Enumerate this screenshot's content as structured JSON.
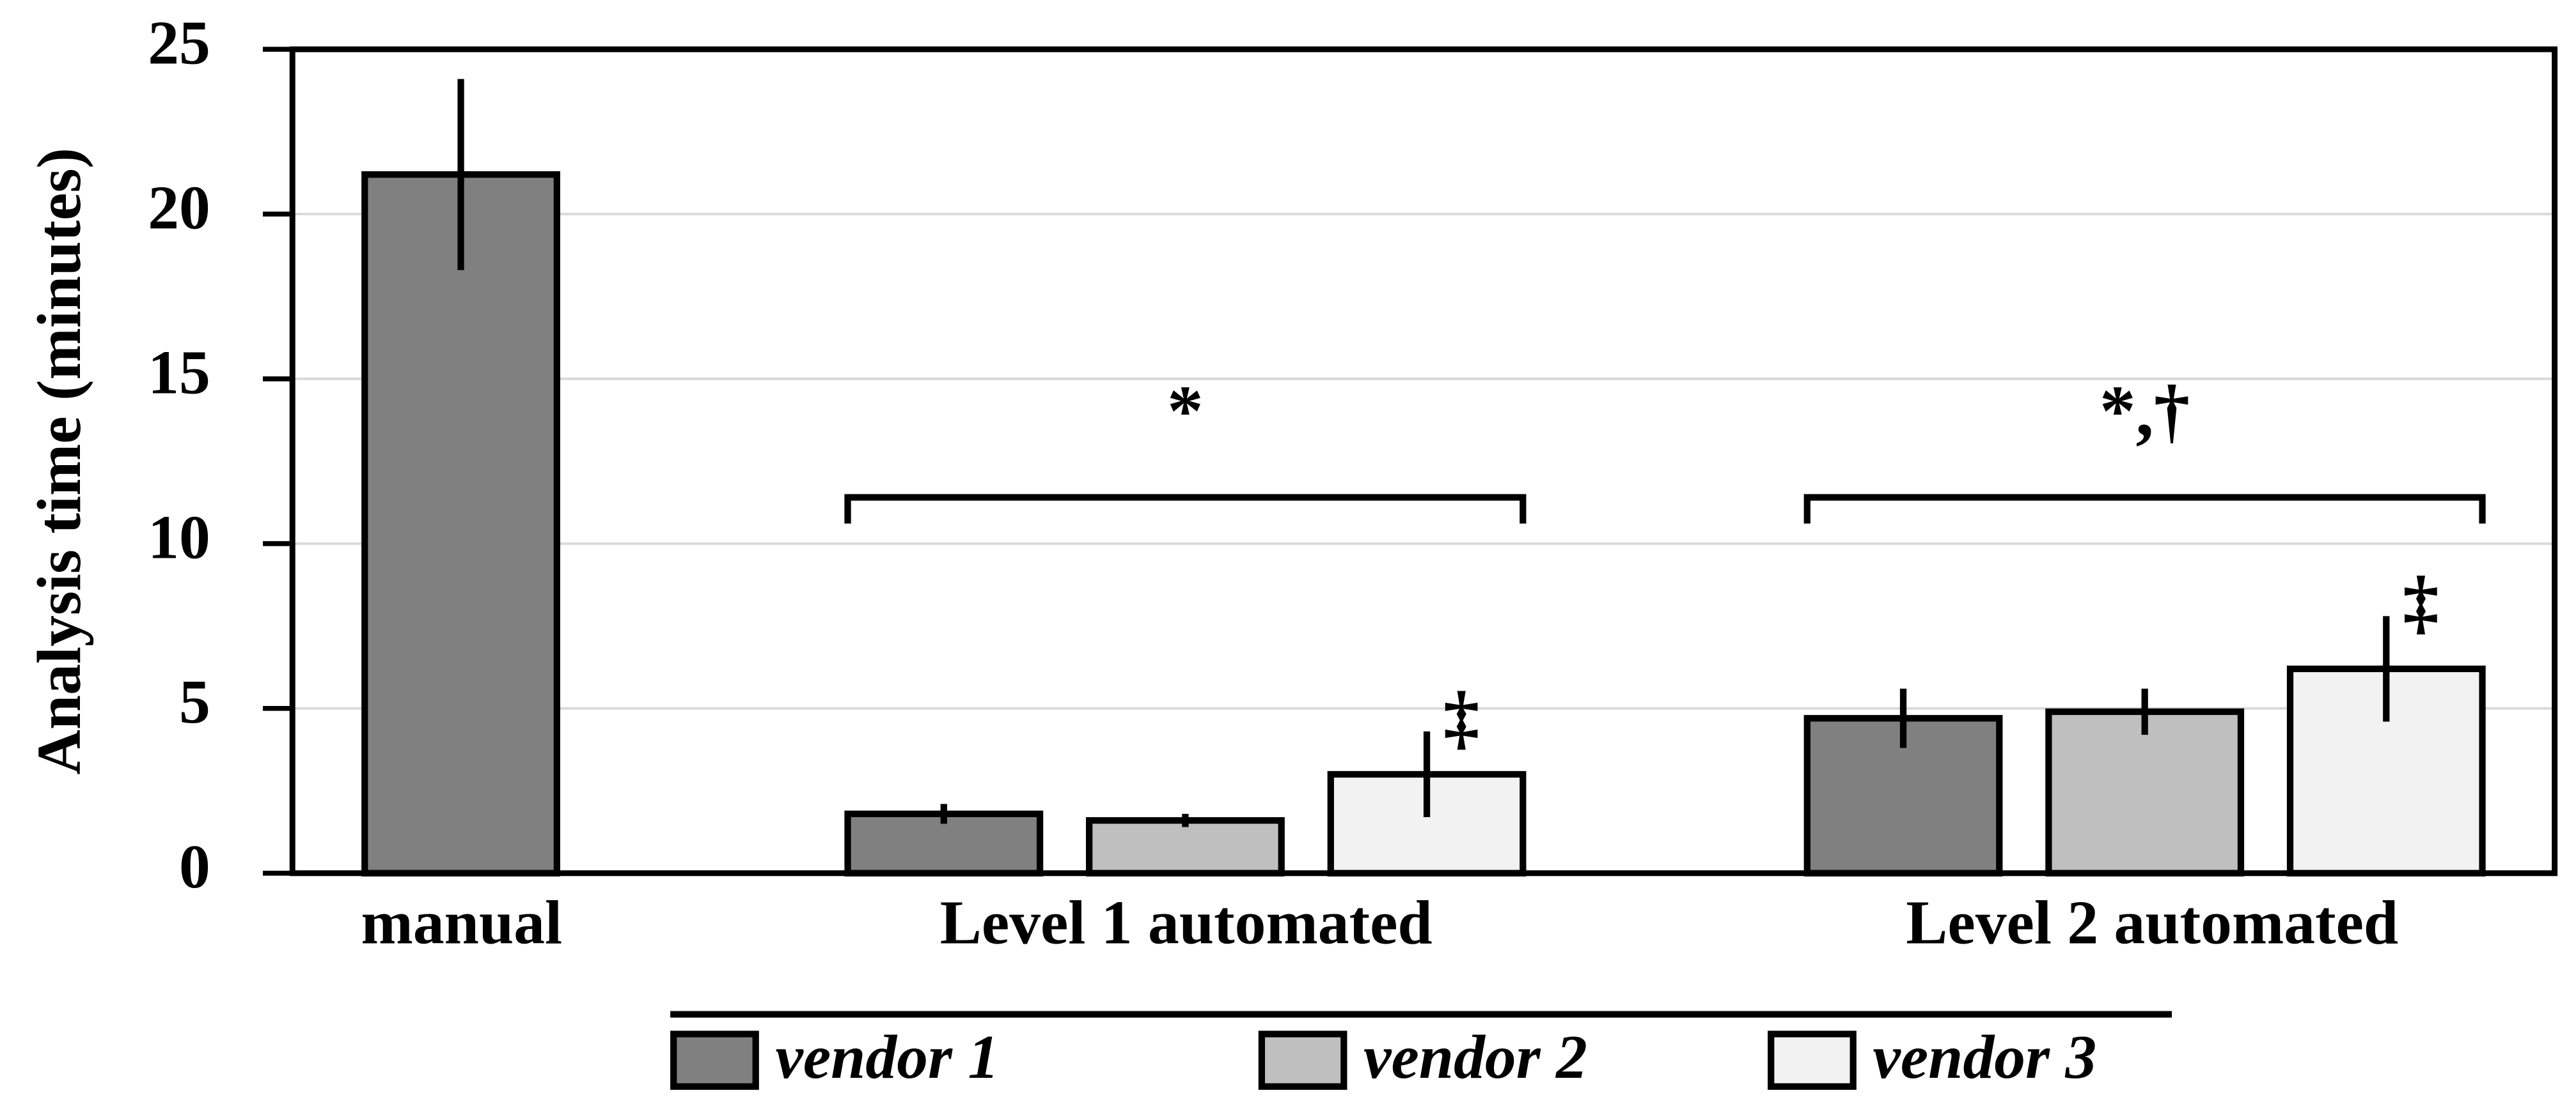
{
  "chart_data": {
    "type": "bar",
    "y_label": "Analysis time (minutes)",
    "categories": [
      "manual",
      "Level 1 automated",
      "Level 2 automated"
    ],
    "series": [
      {
        "name": "vendor 1",
        "color": "#808080",
        "values": [
          21.2,
          1.8,
          4.7
        ],
        "errors": [
          2.9,
          0.3,
          0.9
        ]
      },
      {
        "name": "vendor 2",
        "color": "#bfbfbf",
        "values": [
          null,
          1.6,
          4.9
        ],
        "errors": [
          null,
          0.2,
          0.7
        ]
      },
      {
        "name": "vendor 3",
        "color": "#f2f2f2",
        "values": [
          null,
          3.0,
          6.2
        ],
        "errors": [
          null,
          1.3,
          1.6
        ]
      }
    ],
    "group_annotations": [
      null,
      "*",
      "*,†"
    ],
    "bar_annotations": [
      null,
      "‡",
      "‡"
    ],
    "ylim": [
      0,
      25
    ],
    "yticks": [
      0,
      5,
      10,
      15,
      20,
      25
    ],
    "grid": true
  }
}
